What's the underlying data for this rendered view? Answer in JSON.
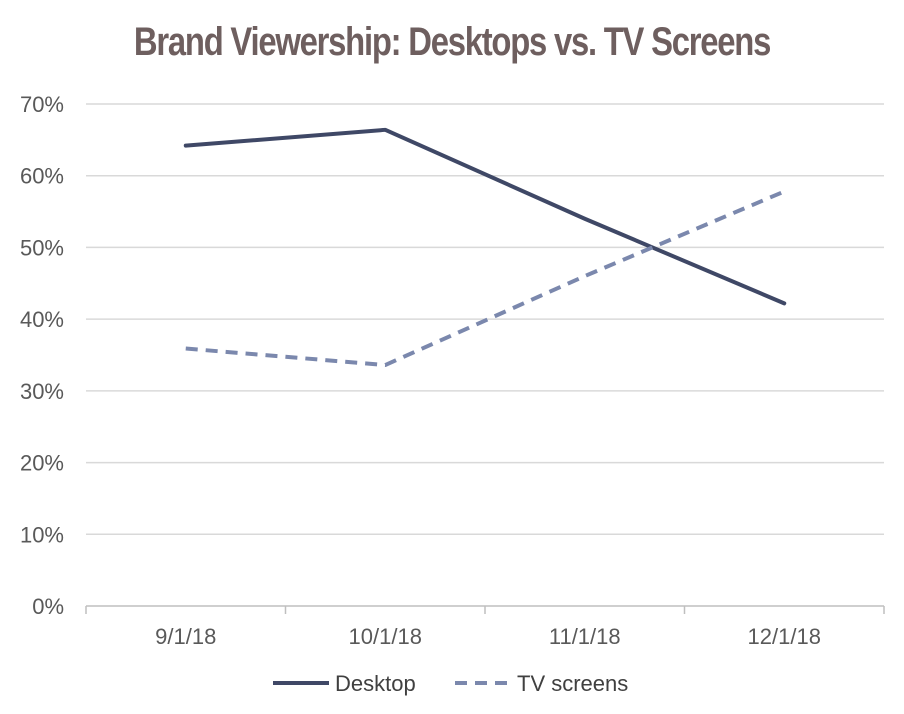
{
  "chart_data": {
    "type": "line",
    "title": "Brand Viewership: Desktops vs. TV Screens",
    "categories": [
      "9/1/18",
      "10/1/18",
      "11/1/18",
      "12/1/18"
    ],
    "y_ticks": [
      "0%",
      "10%",
      "20%",
      "30%",
      "40%",
      "50%",
      "60%",
      "70%"
    ],
    "ylim": [
      0,
      70
    ],
    "grid": true,
    "legend_position": "bottom",
    "series": [
      {
        "name": "Desktop",
        "values": [
          64.2,
          66.4,
          54,
          42.2
        ],
        "color": "#3f4866",
        "dash": "solid"
      },
      {
        "name": "TV screens",
        "values": [
          35.9,
          33.6,
          46,
          57.8
        ],
        "color": "#7b88ad",
        "dash": "dashed"
      }
    ]
  }
}
